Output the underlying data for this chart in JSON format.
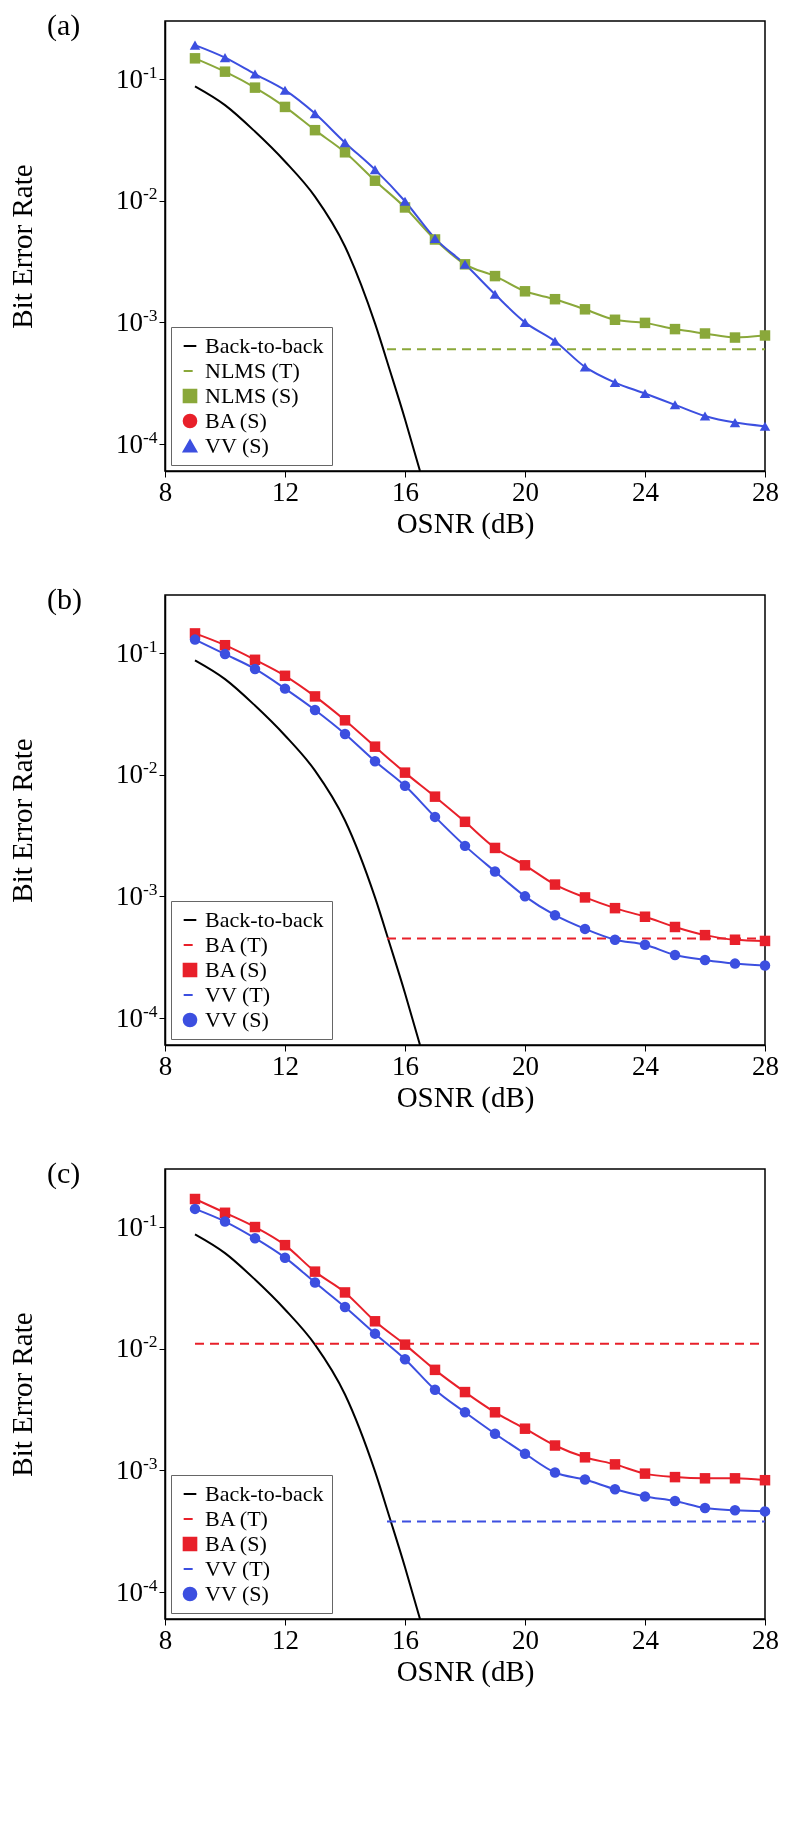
{
  "chart_data": [
    {
      "type": "line",
      "title": "(a)",
      "xlabel": "OSNR (dB)",
      "ylabel": "Bit Error Rate",
      "log": true,
      "grid": false,
      "legend": "bottom left",
      "xlim": [
        8,
        28
      ],
      "ylim": [
        6e-05,
        0.3
      ],
      "xticks": [
        8,
        12,
        16,
        20,
        24,
        28
      ],
      "yticks": [
        {
          "value": 0.1,
          "label": "10$^{-1}$"
        },
        {
          "value": 0.01,
          "label": "10$^{-2}$"
        },
        {
          "value": 0.001,
          "label": "10$^{-3}$"
        },
        {
          "value": 0.0001,
          "label": "10$^{-4}$"
        }
      ],
      "x": [
        9,
        10,
        11,
        12,
        13,
        14,
        15,
        16,
        17,
        18,
        19,
        20,
        21,
        22,
        23,
        24,
        25,
        26,
        27,
        28
      ],
      "series": [
        {
          "name": "Back-to-back",
          "color": "#000000",
          "marker": "none",
          "line_style": "solid",
          "x": [
            9,
            10,
            11,
            12,
            13,
            14,
            15,
            15.5,
            16,
            16.5
          ],
          "values": [
            0.087,
            0.061,
            0.037,
            0.021,
            0.0108,
            0.0042,
            0.00098,
            0.0004,
            0.00016,
            6e-05
          ]
        },
        {
          "name": "NLMS (T)",
          "color": "#8aa83a",
          "marker": "none",
          "line_style": "dashed",
          "x": [
            15.4,
            28
          ],
          "values": [
            0.0006,
            0.0006
          ]
        },
        {
          "name": "NLMS (S)",
          "color": "#8aa83a",
          "marker": "square",
          "line_style": "solid",
          "values": [
            0.148,
            0.115,
            0.085,
            0.059,
            0.038,
            0.025,
            0.0146,
            0.0088,
            0.0048,
            0.003,
            0.0024,
            0.0018,
            0.00155,
            0.00128,
            0.00105,
            0.00099,
            0.00088,
            0.00081,
            0.00075,
            0.00078
          ]
        },
        {
          "name": "BA (S)",
          "color": "#e8202a",
          "marker": "circle",
          "line_style": "solid",
          "values": [
            null,
            null,
            null,
            null,
            null,
            null,
            null,
            null,
            null,
            null,
            null,
            null,
            null,
            null,
            null,
            null,
            null,
            null,
            null,
            null
          ]
        },
        {
          "name": "VV (S)",
          "color": "#3c4fe0",
          "marker": "triangle",
          "line_style": "solid",
          "values": [
            0.19,
            0.15,
            0.11,
            0.081,
            0.052,
            0.03,
            0.018,
            0.0099,
            0.0049,
            0.003,
            0.0017,
            0.001,
            0.0007,
            0.00043,
            0.00032,
            0.00026,
            0.00021,
            0.00017,
            0.00015,
            0.00014
          ]
        }
      ]
    },
    {
      "type": "line",
      "title": "(b)",
      "xlabel": "OSNR (dB)",
      "ylabel": "Bit Error Rate",
      "log": true,
      "grid": false,
      "legend": "bottom left",
      "xlim": [
        8,
        28
      ],
      "ylim": [
        6e-05,
        0.3
      ],
      "xticks": [
        8,
        12,
        16,
        20,
        24,
        28
      ],
      "yticks": [
        {
          "value": 0.1,
          "label": "10$^{-1}$"
        },
        {
          "value": 0.01,
          "label": "10$^{-2}$"
        },
        {
          "value": 0.001,
          "label": "10$^{-3}$"
        },
        {
          "value": 0.0001,
          "label": "10$^{-4}$"
        }
      ],
      "x": [
        9,
        10,
        11,
        12,
        13,
        14,
        15,
        16,
        17,
        18,
        19,
        20,
        21,
        22,
        23,
        24,
        25,
        26,
        27,
        28
      ],
      "series": [
        {
          "name": "Back-to-back",
          "color": "#000000",
          "marker": "none",
          "line_style": "solid",
          "x": [
            9,
            10,
            11,
            12,
            13,
            14,
            15,
            15.5,
            16,
            16.5
          ],
          "values": [
            0.087,
            0.061,
            0.037,
            0.021,
            0.0108,
            0.0042,
            0.00098,
            0.0004,
            0.00016,
            6e-05
          ]
        },
        {
          "name": "BA (T)",
          "color": "#e8202a",
          "marker": "none",
          "line_style": "dashed",
          "x": [
            15.4,
            28
          ],
          "values": [
            0.00045,
            0.00045
          ]
        },
        {
          "name": "BA (S)",
          "color": "#e8202a",
          "marker": "square",
          "line_style": "solid",
          "values": [
            0.145,
            0.116,
            0.088,
            0.065,
            0.044,
            0.028,
            0.017,
            0.0104,
            0.0066,
            0.0041,
            0.0025,
            0.0018,
            0.00125,
            0.00098,
            0.0008,
            0.00068,
            0.00056,
            0.00048,
            0.00044,
            0.00043
          ]
        },
        {
          "name": "VV (T)",
          "color": "#3c4fe0",
          "marker": "none",
          "line_style": "dashed",
          "values": [
            null,
            null,
            null,
            null,
            null,
            null,
            null,
            null,
            null,
            null,
            null,
            null,
            null,
            null,
            null,
            null,
            null,
            null,
            null,
            null
          ]
        },
        {
          "name": "VV (S)",
          "color": "#3c4fe0",
          "marker": "circle",
          "line_style": "solid",
          "values": [
            0.129,
            0.098,
            0.074,
            0.051,
            0.034,
            0.0216,
            0.0129,
            0.0081,
            0.0045,
            0.0026,
            0.0016,
            0.001,
            0.0007,
            0.00054,
            0.00044,
            0.0004,
            0.00033,
            0.0003,
            0.00028,
            0.00027
          ]
        }
      ]
    },
    {
      "type": "line",
      "title": "(c)",
      "xlabel": "OSNR (dB)",
      "ylabel": "Bit Error Rate",
      "log": true,
      "grid": false,
      "legend": "bottom left",
      "xlim": [
        8,
        28
      ],
      "ylim": [
        6e-05,
        0.3
      ],
      "xticks": [
        8,
        12,
        16,
        20,
        24,
        28
      ],
      "yticks": [
        {
          "value": 0.1,
          "label": "10$^{-1}$"
        },
        {
          "value": 0.01,
          "label": "10$^{-2}$"
        },
        {
          "value": 0.001,
          "label": "10$^{-3}$"
        },
        {
          "value": 0.0001,
          "label": "10$^{-4}$"
        }
      ],
      "x": [
        9,
        10,
        11,
        12,
        13,
        14,
        15,
        16,
        17,
        18,
        19,
        20,
        21,
        22,
        23,
        24,
        25,
        26,
        27,
        28
      ],
      "series": [
        {
          "name": "Back-to-back",
          "color": "#000000",
          "marker": "none",
          "line_style": "solid",
          "x": [
            9,
            10,
            11,
            12,
            13,
            14,
            15,
            15.5,
            16,
            16.5
          ],
          "values": [
            0.087,
            0.061,
            0.037,
            0.021,
            0.0108,
            0.0042,
            0.00098,
            0.0004,
            0.00016,
            6e-05
          ]
        },
        {
          "name": "BA (T)",
          "color": "#e8202a",
          "marker": "none",
          "line_style": "dashed",
          "x": [
            9,
            28
          ],
          "values": [
            0.011,
            0.011
          ]
        },
        {
          "name": "BA (S)",
          "color": "#e8202a",
          "marker": "square",
          "line_style": "solid",
          "values": [
            0.17,
            0.131,
            0.1,
            0.071,
            0.043,
            0.029,
            0.0168,
            0.0108,
            0.0067,
            0.0044,
            0.003,
            0.0022,
            0.0016,
            0.00128,
            0.00112,
            0.00094,
            0.00088,
            0.00086,
            0.00086,
            0.00083
          ]
        },
        {
          "name": "VV (T)",
          "color": "#3c4fe0",
          "marker": "none",
          "line_style": "dashed",
          "x": [
            15.4,
            28
          ],
          "values": [
            0.00038,
            0.00038
          ]
        },
        {
          "name": "VV (S)",
          "color": "#3c4fe0",
          "marker": "circle",
          "line_style": "solid",
          "values": [
            0.141,
            0.111,
            0.081,
            0.056,
            0.035,
            0.022,
            0.0133,
            0.0082,
            0.0046,
            0.003,
            0.002,
            0.00137,
            0.00096,
            0.00084,
            0.0007,
            0.00061,
            0.00056,
            0.00049,
            0.00047,
            0.00046
          ]
        }
      ]
    }
  ]
}
